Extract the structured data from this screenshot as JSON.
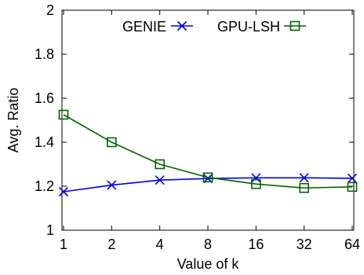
{
  "chart_data": {
    "type": "line",
    "title": "",
    "xlabel": "Value of k",
    "ylabel": "Avg. Ratio",
    "x": [
      "1",
      "2",
      "4",
      "8",
      "16",
      "32",
      "64"
    ],
    "ylim": [
      1,
      2
    ],
    "yticks": [
      "1",
      "1.2",
      "1.4",
      "1.6",
      "1.8",
      "2"
    ],
    "grid": false,
    "legend_position": "top",
    "series": [
      {
        "name": "GENIE",
        "color": "#0000ee",
        "marker": "x",
        "values": [
          1.175,
          1.205,
          1.228,
          1.235,
          1.238,
          1.238,
          1.236
        ]
      },
      {
        "name": "GPU-LSH",
        "color": "#006400",
        "marker": "square",
        "values": [
          1.525,
          1.4,
          1.3,
          1.24,
          1.21,
          1.192,
          1.197
        ]
      }
    ]
  }
}
